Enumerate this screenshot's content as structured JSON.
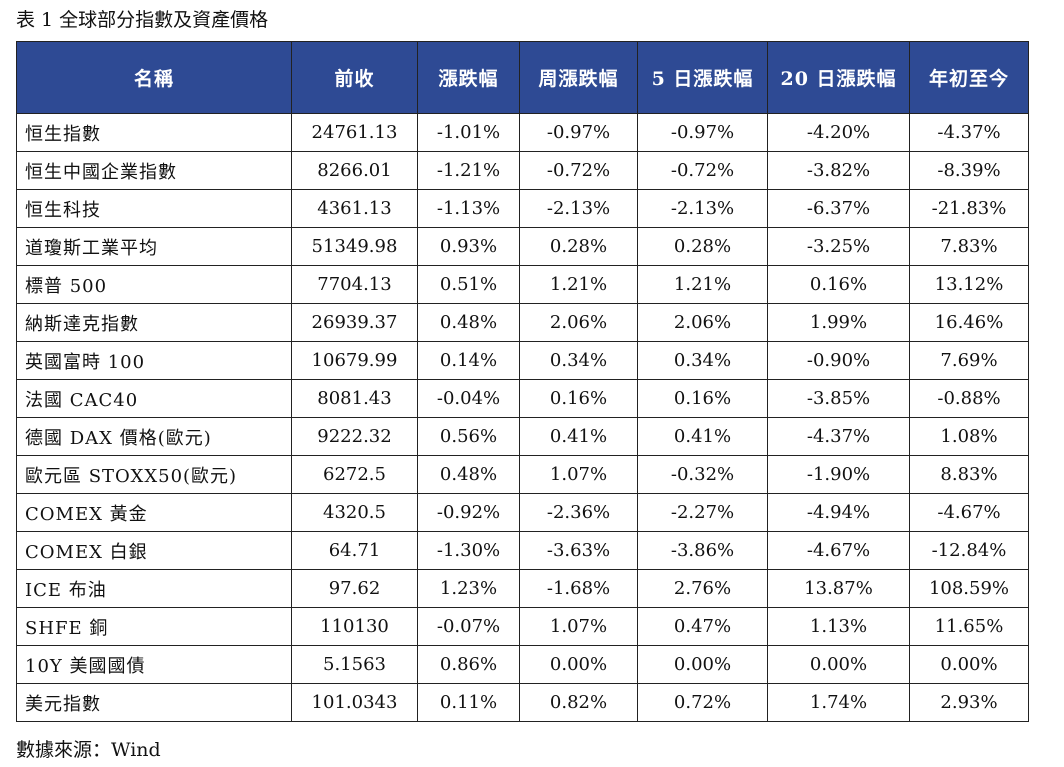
{
  "caption": "表 1 全球部分指數及資產價格",
  "table": {
    "headers": [
      "名稱",
      "前收",
      "漲跌幅",
      "周漲跌幅",
      "5 日漲跌幅",
      "20 日漲跌幅",
      "年初至今"
    ],
    "rows": [
      [
        "恒生指數",
        "24761.13",
        "-1.01%",
        "-0.97%",
        "-0.97%",
        "-4.20%",
        "-4.37%"
      ],
      [
        "恒生中國企業指數",
        "8266.01",
        "-1.21%",
        "-0.72%",
        "-0.72%",
        "-3.82%",
        "-8.39%"
      ],
      [
        "恒生科技",
        "4361.13",
        "-1.13%",
        "-2.13%",
        "-2.13%",
        "-6.37%",
        "-21.83%"
      ],
      [
        "道瓊斯工業平均",
        "51349.98",
        "0.93%",
        "0.28%",
        "0.28%",
        "-3.25%",
        "7.83%"
      ],
      [
        "標普 500",
        "7704.13",
        "0.51%",
        "1.21%",
        "1.21%",
        "0.16%",
        "13.12%"
      ],
      [
        "納斯達克指數",
        "26939.37",
        "0.48%",
        "2.06%",
        "2.06%",
        "1.99%",
        "16.46%"
      ],
      [
        "英國富時 100",
        "10679.99",
        "0.14%",
        "0.34%",
        "0.34%",
        "-0.90%",
        "7.69%"
      ],
      [
        "法國 CAC40",
        "8081.43",
        "-0.04%",
        "0.16%",
        "0.16%",
        "-3.85%",
        "-0.88%"
      ],
      [
        "德國 DAX 價格(歐元)",
        "9222.32",
        "0.56%",
        "0.41%",
        "0.41%",
        "-4.37%",
        "1.08%"
      ],
      [
        "歐元區 STOXX50(歐元)",
        "6272.5",
        "0.48%",
        "1.07%",
        "-0.32%",
        "-1.90%",
        "8.83%"
      ],
      [
        "COMEX 黃金",
        "4320.5",
        "-0.92%",
        "-2.36%",
        "-2.27%",
        "-4.94%",
        "-4.67%"
      ],
      [
        "COMEX 白銀",
        "64.71",
        "-1.30%",
        "-3.63%",
        "-3.86%",
        "-4.67%",
        "-12.84%"
      ],
      [
        "ICE 布油",
        "97.62",
        "1.23%",
        "-1.68%",
        "2.76%",
        "13.87%",
        "108.59%"
      ],
      [
        "SHFE 銅",
        "110130",
        "-0.07%",
        "1.07%",
        "0.47%",
        "1.13%",
        "11.65%"
      ],
      [
        "10Y 美國國債",
        "5.1563",
        "0.86%",
        "0.00%",
        "0.00%",
        "0.00%",
        "0.00%"
      ],
      [
        "美元指數",
        "101.0343",
        "0.11%",
        "0.82%",
        "0.72%",
        "1.74%",
        "2.93%"
      ]
    ]
  },
  "source": "數據來源：Wind",
  "colors": {
    "header_bg": "#2e4a94",
    "header_text": "#ffffff",
    "border": "#222222"
  }
}
